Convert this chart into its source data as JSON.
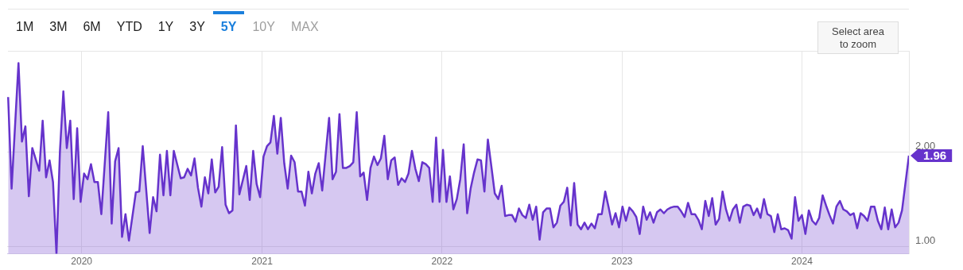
{
  "chart_data": {
    "type": "area",
    "grid": true,
    "annotations": [
      "1M",
      "3M",
      "6M",
      "YTD",
      "1Y",
      "3Y",
      "5Y",
      "10Y",
      "MAX",
      "Select area to zoom",
      {
        "text": "1.96",
        "x": "2024-08-05",
        "y": 1.96
      }
    ],
    "xlim": [
      "2019-08-03",
      "2024-08-05"
    ],
    "xticks": [
      "2020",
      "2021",
      "2022",
      "2023",
      "2024"
    ],
    "ylim": [
      0.92,
      3.07
    ],
    "yticks": [
      {
        "value": 1,
        "label": "1.00"
      },
      {
        "value": 2,
        "label": "2.00"
      }
    ],
    "x": [
      "2019-08-05",
      "2019-08-12",
      "2019-08-26",
      "2019-09-02",
      "2019-09-09",
      "2019-09-16",
      "2019-09-23",
      "2019-10-07",
      "2019-10-14",
      "2019-10-21",
      "2019-10-28",
      "2019-11-04",
      "2019-11-11",
      "2019-11-18",
      "2019-11-25",
      "2019-12-02",
      "2019-12-09",
      "2019-12-16",
      "2019-12-23",
      "2019-12-30",
      "2020-01-06",
      "2020-01-13",
      "2020-01-20",
      "2020-01-27",
      "2020-02-03",
      "2020-02-10",
      "2020-02-24",
      "2020-03-02",
      "2020-03-09",
      "2020-03-16",
      "2020-03-23",
      "2020-03-30",
      "2020-04-06",
      "2020-04-20",
      "2020-04-27",
      "2020-05-04",
      "2020-05-18",
      "2020-05-25",
      "2020-06-01",
      "2020-06-08",
      "2020-06-15",
      "2020-06-22",
      "2020-06-29",
      "2020-07-06",
      "2020-07-20",
      "2020-07-27",
      "2020-08-03",
      "2020-08-10",
      "2020-08-17",
      "2020-08-24",
      "2020-08-31",
      "2020-09-07",
      "2020-09-14",
      "2020-09-21",
      "2020-09-28",
      "2020-10-05",
      "2020-10-12",
      "2020-10-19",
      "2020-10-26",
      "2020-11-02",
      "2020-11-09",
      "2020-11-16",
      "2020-11-30",
      "2020-12-07",
      "2020-12-14",
      "2020-12-21",
      "2020-12-28",
      "2021-01-04",
      "2021-01-11",
      "2021-01-18",
      "2021-01-25",
      "2021-02-01",
      "2021-02-08",
      "2021-02-15",
      "2021-02-22",
      "2021-03-01",
      "2021-03-08",
      "2021-03-15",
      "2021-03-22",
      "2021-03-29",
      "2021-04-05",
      "2021-04-12",
      "2021-04-19",
      "2021-04-26",
      "2021-05-03",
      "2021-05-17",
      "2021-05-24",
      "2021-05-31",
      "2021-06-07",
      "2021-06-14",
      "2021-06-21",
      "2021-06-28",
      "2021-07-05",
      "2021-07-12",
      "2021-07-19",
      "2021-07-26",
      "2021-08-02",
      "2021-08-09",
      "2021-08-16",
      "2021-08-23",
      "2021-08-30",
      "2021-09-06",
      "2021-09-13",
      "2021-09-20",
      "2021-09-27",
      "2021-10-04",
      "2021-10-11",
      "2021-10-18",
      "2021-10-25",
      "2021-11-01",
      "2021-11-08",
      "2021-11-15",
      "2021-11-22",
      "2021-11-29",
      "2021-12-06",
      "2021-12-13",
      "2021-12-20",
      "2021-12-27",
      "2022-01-03",
      "2022-01-10",
      "2022-01-17",
      "2022-01-24",
      "2022-01-31",
      "2022-02-07",
      "2022-02-14",
      "2022-02-21",
      "2022-02-28",
      "2022-03-07",
      "2022-03-14",
      "2022-03-21",
      "2022-03-28",
      "2022-04-04",
      "2022-04-11",
      "2022-04-18",
      "2022-04-25",
      "2022-05-02",
      "2022-05-09",
      "2022-05-16",
      "2022-05-23",
      "2022-05-30",
      "2022-06-06",
      "2022-06-13",
      "2022-06-20",
      "2022-06-27",
      "2022-07-04",
      "2022-07-11",
      "2022-07-18",
      "2022-07-25",
      "2022-08-01",
      "2022-08-08",
      "2022-08-15",
      "2022-08-22",
      "2022-08-29",
      "2022-09-05",
      "2022-09-12",
      "2022-09-19",
      "2022-09-26",
      "2022-10-03",
      "2022-10-10",
      "2022-10-17",
      "2022-10-24",
      "2022-10-31",
      "2022-11-07",
      "2022-11-14",
      "2022-11-21",
      "2022-11-28",
      "2022-12-05",
      "2022-12-12",
      "2022-12-19",
      "2022-12-26",
      "2023-01-02",
      "2023-01-09",
      "2023-01-16",
      "2023-01-23",
      "2023-01-30",
      "2023-02-06",
      "2023-02-13",
      "2023-02-20",
      "2023-02-27",
      "2023-03-06",
      "2023-03-13",
      "2023-03-20",
      "2023-03-27",
      "2023-04-03",
      "2023-04-10",
      "2023-04-17",
      "2023-04-24",
      "2023-05-01",
      "2023-05-08",
      "2023-05-15",
      "2023-05-22",
      "2023-05-29",
      "2023-06-05",
      "2023-06-12",
      "2023-06-19",
      "2023-06-26",
      "2023-07-03",
      "2023-07-10",
      "2023-07-17",
      "2023-07-24",
      "2023-07-31",
      "2023-08-07",
      "2023-08-14",
      "2023-08-21",
      "2023-08-28",
      "2023-09-04",
      "2023-09-11",
      "2023-09-18",
      "2023-09-25",
      "2023-10-02",
      "2023-10-09",
      "2023-10-16",
      "2023-10-23",
      "2023-10-30",
      "2023-11-06",
      "2023-11-13",
      "2023-11-20",
      "2023-11-27",
      "2023-12-04",
      "2023-12-11",
      "2023-12-18",
      "2023-12-25",
      "2024-01-01",
      "2024-01-08",
      "2024-01-15",
      "2024-01-22",
      "2024-01-29",
      "2024-02-05",
      "2024-02-12",
      "2024-02-19",
      "2024-02-26",
      "2024-03-04",
      "2024-03-11",
      "2024-03-18",
      "2024-03-25",
      "2024-04-01",
      "2024-04-08",
      "2024-04-15",
      "2024-04-22",
      "2024-04-29",
      "2024-05-06",
      "2024-05-13",
      "2024-05-20",
      "2024-05-27",
      "2024-06-03",
      "2024-06-10",
      "2024-06-17",
      "2024-06-24",
      "2024-07-01",
      "2024-07-08",
      "2024-07-15",
      "2024-07-22",
      "2024-08-05"
    ],
    "series": [
      {
        "color": "#6633cc",
        "values": [
          2.58,
          1.61,
          2.94,
          2.11,
          2.27,
          1.53,
          2.04,
          1.8,
          2.33,
          1.73,
          1.91,
          1.68,
          0.92,
          2.0,
          2.64,
          2.04,
          2.33,
          1.5,
          2.25,
          1.47,
          1.77,
          1.71,
          1.87,
          1.68,
          1.68,
          1.34,
          2.42,
          1.24,
          1.9,
          2.04,
          1.1,
          1.34,
          1.06,
          1.57,
          1.58,
          2.06,
          1.14,
          1.52,
          1.37,
          1.97,
          1.54,
          2.01,
          1.54,
          2.01,
          1.72,
          1.73,
          1.82,
          1.75,
          1.93,
          1.62,
          1.42,
          1.73,
          1.56,
          1.92,
          1.57,
          1.63,
          2.05,
          1.44,
          1.35,
          1.38,
          2.28,
          1.55,
          1.85,
          1.49,
          2.01,
          1.66,
          1.52,
          1.95,
          2.06,
          2.1,
          2.38,
          1.98,
          2.36,
          1.88,
          1.61,
          1.96,
          1.89,
          1.58,
          1.58,
          1.43,
          1.79,
          1.56,
          1.77,
          1.88,
          1.59,
          2.36,
          1.71,
          1.79,
          2.4,
          1.83,
          1.83,
          1.85,
          1.89,
          2.42,
          1.74,
          1.78,
          1.49,
          1.83,
          1.95,
          1.86,
          1.93,
          2.17,
          1.71,
          1.91,
          1.94,
          1.65,
          1.72,
          1.68,
          1.77,
          2.01,
          1.82,
          1.69,
          1.89,
          1.87,
          1.83,
          1.47,
          2.15,
          1.47,
          2.02,
          1.47,
          1.74,
          1.39,
          1.5,
          1.71,
          2.08,
          1.35,
          1.61,
          1.78,
          1.92,
          1.91,
          1.58,
          2.13,
          1.85,
          1.56,
          1.5,
          1.64,
          1.32,
          1.33,
          1.33,
          1.26,
          1.4,
          1.33,
          1.3,
          1.44,
          1.28,
          1.42,
          1.07,
          1.36,
          1.4,
          1.4,
          1.2,
          1.25,
          1.43,
          1.47,
          1.62,
          1.22,
          1.67,
          1.23,
          1.18,
          1.25,
          1.18,
          1.24,
          1.19,
          1.34,
          1.34,
          1.58,
          1.41,
          1.23,
          1.35,
          1.2,
          1.42,
          1.27,
          1.41,
          1.37,
          1.31,
          1.13,
          1.42,
          1.28,
          1.36,
          1.25,
          1.36,
          1.39,
          1.35,
          1.39,
          1.41,
          1.42,
          1.42,
          1.37,
          1.31,
          1.46,
          1.34,
          1.34,
          1.28,
          1.18,
          1.48,
          1.32,
          1.51,
          1.23,
          1.29,
          1.58,
          1.39,
          1.27,
          1.39,
          1.44,
          1.25,
          1.42,
          1.44,
          1.43,
          1.33,
          1.4,
          1.3,
          1.5,
          1.34,
          1.32,
          1.15,
          1.34,
          1.18,
          1.19,
          1.17,
          1.08,
          1.52,
          1.27,
          1.33,
          1.13,
          1.38,
          1.27,
          1.23,
          1.3,
          1.54,
          1.43,
          1.33,
          1.24,
          1.42,
          1.48,
          1.39,
          1.37,
          1.33,
          1.35,
          1.19,
          1.35,
          1.32,
          1.27,
          1.42,
          1.42,
          1.27,
          1.18,
          1.41,
          1.18,
          1.39,
          1.2,
          1.25,
          1.38,
          1.96
        ]
      }
    ]
  }
}
